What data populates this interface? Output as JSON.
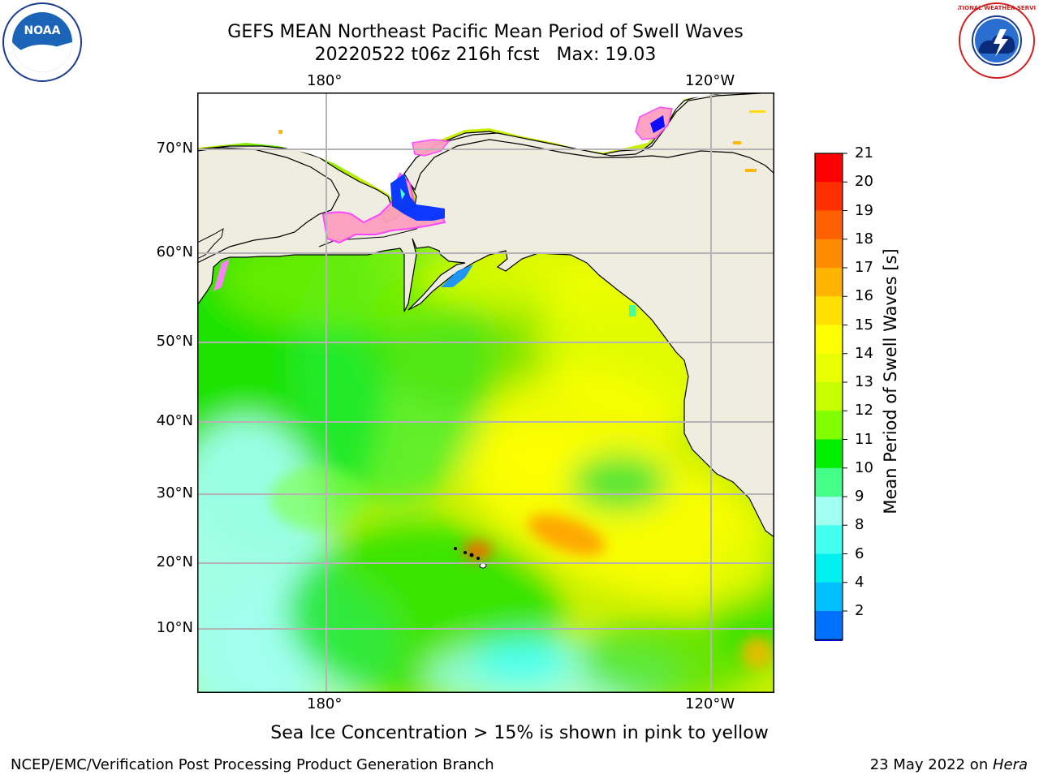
{
  "title": {
    "line1": "GEFS MEAN Northeast Pacific Mean Period of Swell Waves",
    "line2": "20220522 t06z 216h fcst   Max: 19.03"
  },
  "map": {
    "lon_labels_top": [
      "180°",
      "120°W"
    ],
    "lon_labels_bottom": [
      "180°",
      "120°W"
    ],
    "lat_labels": [
      "70°N",
      "60°N",
      "50°N",
      "40°N",
      "30°N",
      "20°N",
      "10°N"
    ],
    "colors": {
      "land": "#efede0",
      "grid": "#b4b4b4",
      "coast": "#000000"
    }
  },
  "colorbar": {
    "label": "Mean Period of Swell Waves [s]",
    "ticks": [
      "21",
      "20",
      "19",
      "18",
      "17",
      "16",
      "15",
      "14",
      "13",
      "12",
      "11",
      "10",
      "9",
      "8",
      "6",
      "4",
      "2"
    ],
    "colors_top_to_bottom": [
      "#ff0000",
      "#ff3000",
      "#ff6000",
      "#ff8c00",
      "#ffb400",
      "#ffe000",
      "#ffff00",
      "#e8ff00",
      "#c8ff00",
      "#80ff00",
      "#00ee00",
      "#44ff88",
      "#a0fff0",
      "#44fff0",
      "#00f0f0",
      "#00c0ff",
      "#0070ff"
    ],
    "under_color": "#0000ff"
  },
  "note": "Sea Ice Concentration > 15% is shown in pink to yellow",
  "footer": {
    "left": "NCEP/EMC/Verification Post Processing Product Generation Branch",
    "right_prefix": "23 May 2022 on ",
    "right_host": "Hera"
  },
  "logos": {
    "noaa_text": "NOAA",
    "nws_text": "NATIONAL WEATHER SERVICE"
  }
}
